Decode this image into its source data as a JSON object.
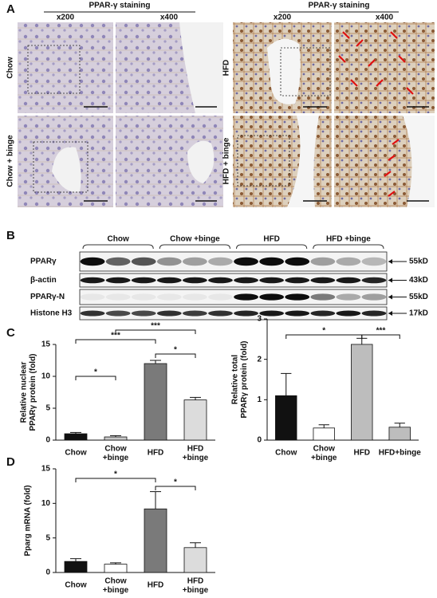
{
  "panel_labels": [
    "A",
    "B",
    "C",
    "D"
  ],
  "staining": {
    "title": "PPAR-γ staining",
    "magnifications": [
      "x200",
      "x400"
    ],
    "left_rows": [
      "Chow",
      "Chow + binge"
    ],
    "right_rows": [
      "HFD",
      "HFD + binge"
    ]
  },
  "blot": {
    "groups": [
      "Chow",
      "Chow +binge",
      "HFD",
      "HFD +binge"
    ],
    "rows": [
      {
        "label": "PPARγ",
        "size": "55kD"
      },
      {
        "label": "β-actin",
        "size": "43kD"
      },
      {
        "label": "PPARγ-N",
        "size": "55kD"
      },
      {
        "label": "Histone H3",
        "size": "17kD"
      }
    ]
  },
  "chart_data": [
    {
      "type": "bar",
      "y_label": "Relative nuclear\nPPARγ protein (fold)",
      "categories": [
        "Chow",
        "Chow\n+binge",
        "HFD",
        "HFD\n+binge"
      ],
      "values": [
        1.0,
        0.5,
        12.0,
        6.3
      ],
      "errors": [
        0.2,
        0.2,
        0.5,
        0.4
      ],
      "colors": [
        "#111111",
        "#c8c8c8",
        "#7a7a7a",
        "#dcdcdc"
      ],
      "ylim": [
        0,
        15
      ],
      "yticks": [
        0,
        5,
        10,
        15
      ],
      "significance": [
        "*",
        "***",
        "***",
        "*"
      ]
    },
    {
      "type": "bar",
      "y_label": "Relative total\nPPARγ protein (fold)",
      "categories": [
        "Chow",
        "Chow\n+binge",
        "HFD",
        "HFD+binge"
      ],
      "values": [
        1.1,
        0.3,
        2.37,
        0.32
      ],
      "errors": [
        0.55,
        0.08,
        0.15,
        0.1
      ],
      "colors": [
        "#111111",
        "#ffffff",
        "#bdbdbd",
        "#bdbdbd"
      ],
      "ylim": [
        0,
        3
      ],
      "yticks": [
        0,
        1,
        2,
        3
      ],
      "significance": [
        "*",
        "***"
      ]
    },
    {
      "type": "bar",
      "y_label": "Pparg mRNA (fold)",
      "categories": [
        "Chow",
        "Chow\n+binge",
        "HFD",
        "HFD\n+binge"
      ],
      "values": [
        1.6,
        1.2,
        9.2,
        3.6
      ],
      "errors": [
        0.4,
        0.2,
        2.5,
        0.7
      ],
      "colors": [
        "#111111",
        "#ffffff",
        "#7a7a7a",
        "#dcdcdc"
      ],
      "ylim": [
        0,
        15
      ],
      "yticks": [
        0,
        5,
        10,
        15
      ],
      "significance": [
        "*",
        "*"
      ]
    }
  ]
}
